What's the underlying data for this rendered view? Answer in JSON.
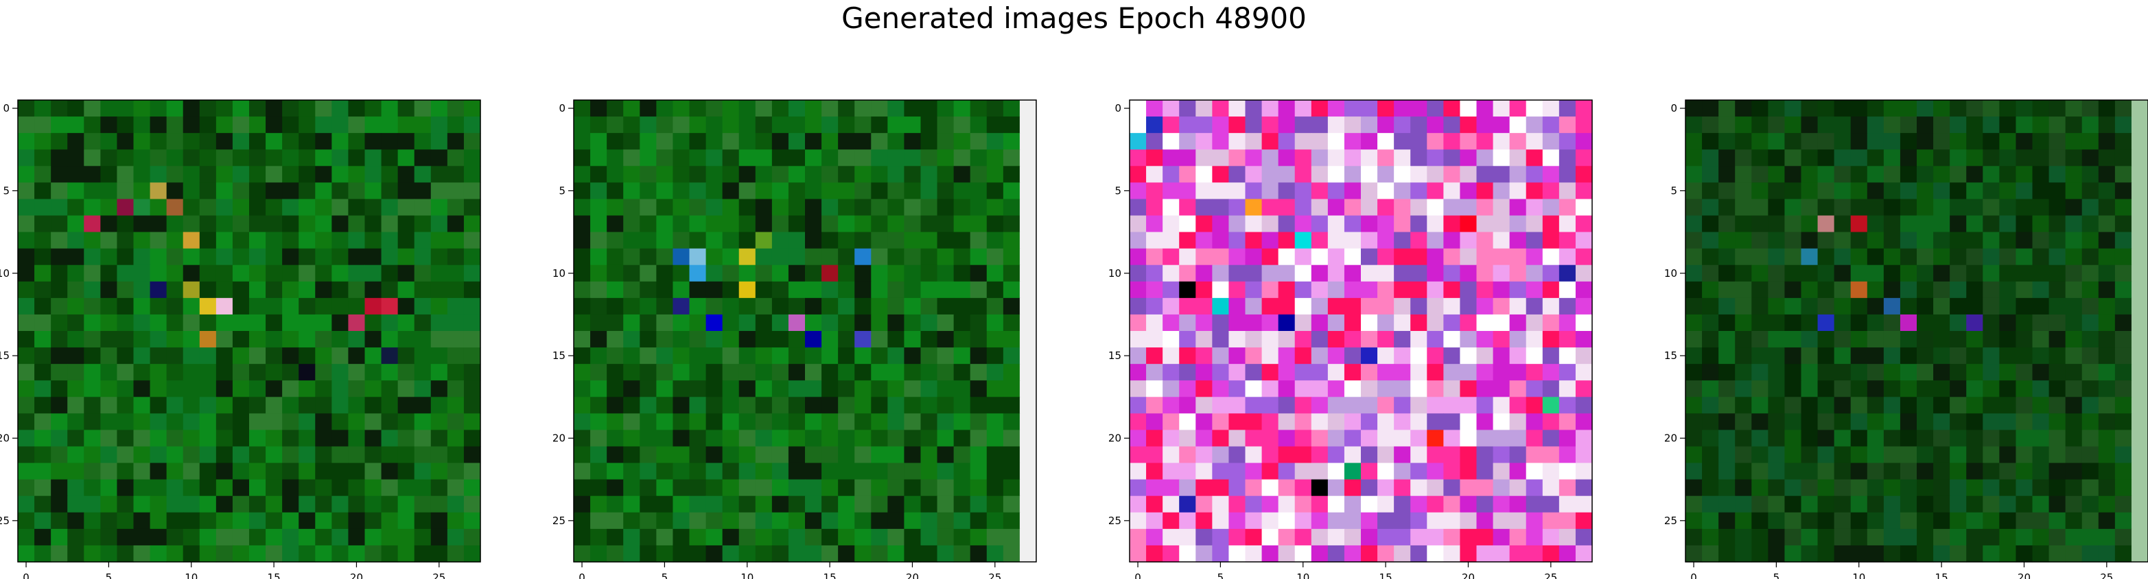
{
  "figure": {
    "title": "Generated images Epoch 48900"
  },
  "chart_data": [
    {
      "type": "heatmap",
      "title": "",
      "xlabel": "",
      "ylabel": "",
      "grid_size": 28,
      "xticks": [
        0,
        5,
        10,
        15,
        20,
        25
      ],
      "yticks": [
        0,
        5,
        10,
        15,
        20,
        25
      ],
      "grid": false,
      "palette": [
        "#0b5a0b",
        "#107a10",
        "#0a6a12",
        "#063e06",
        "#0c8c1c",
        "#1b6b1b",
        "#0a1f0a",
        "#0b4a0b",
        "#2f7d2f",
        "#0d7a2a"
      ],
      "highlights": [
        {
          "row": 5,
          "col": 8,
          "color": "#b8a040"
        },
        {
          "row": 6,
          "col": 6,
          "color": "#8a1040"
        },
        {
          "row": 6,
          "col": 7,
          "color": "#1a8a3a"
        },
        {
          "row": 6,
          "col": 9,
          "color": "#a06030"
        },
        {
          "row": 7,
          "col": 4,
          "color": "#c02050"
        },
        {
          "row": 8,
          "col": 10,
          "color": "#d0a030"
        },
        {
          "row": 11,
          "col": 8,
          "color": "#101060"
        },
        {
          "row": 11,
          "col": 10,
          "color": "#a0a020"
        },
        {
          "row": 12,
          "col": 11,
          "color": "#e0c020"
        },
        {
          "row": 12,
          "col": 12,
          "color": "#f0c0e0"
        },
        {
          "row": 12,
          "col": 21,
          "color": "#c01030"
        },
        {
          "row": 12,
          "col": 22,
          "color": "#d02040"
        },
        {
          "row": 13,
          "col": 20,
          "color": "#c03060"
        },
        {
          "row": 14,
          "col": 11,
          "color": "#c08020"
        },
        {
          "row": 15,
          "col": 22,
          "color": "#101a40"
        },
        {
          "row": 16,
          "col": 17,
          "color": "#0a0a1a"
        }
      ],
      "right_column": ""
    },
    {
      "type": "heatmap",
      "title": "",
      "xlabel": "",
      "ylabel": "",
      "grid_size": 28,
      "xticks": [
        0,
        5,
        10,
        15,
        20,
        25
      ],
      "yticks": [
        0,
        5,
        10,
        15,
        20,
        25
      ],
      "grid": false,
      "palette": [
        "#0b5a0b",
        "#107a10",
        "#0a6a12",
        "#063e06",
        "#0c8c1c",
        "#1b6b1b",
        "#0a1f0a",
        "#0b4a0b",
        "#2f7d2f",
        "#0d7a2a"
      ],
      "highlights": [
        {
          "row": 9,
          "col": 6,
          "color": "#1060b0"
        },
        {
          "row": 9,
          "col": 7,
          "color": "#80c0e0"
        },
        {
          "row": 9,
          "col": 10,
          "color": "#d0c020"
        },
        {
          "row": 9,
          "col": 17,
          "color": "#2080d0"
        },
        {
          "row": 10,
          "col": 7,
          "color": "#30a0e0"
        },
        {
          "row": 11,
          "col": 10,
          "color": "#e0c010"
        },
        {
          "row": 12,
          "col": 6,
          "color": "#202080"
        },
        {
          "row": 13,
          "col": 8,
          "color": "#0000d0"
        },
        {
          "row": 13,
          "col": 13,
          "color": "#c060c0"
        },
        {
          "row": 14,
          "col": 14,
          "color": "#0000a0"
        },
        {
          "row": 14,
          "col": 17,
          "color": "#4040c0"
        },
        {
          "row": 10,
          "col": 15,
          "color": "#a01020"
        },
        {
          "row": 8,
          "col": 11,
          "color": "#60a020"
        }
      ],
      "right_column": "#f0f0f0"
    },
    {
      "type": "heatmap",
      "title": "",
      "xlabel": "",
      "ylabel": "",
      "grid_size": 28,
      "xticks": [
        0,
        5,
        10,
        15,
        20,
        25
      ],
      "yticks": [
        0,
        5,
        10,
        15,
        20,
        25
      ],
      "grid": false,
      "palette": [
        "#f5e6f5",
        "#e040e0",
        "#ff30a0",
        "#ffffff",
        "#c0a0e0",
        "#e0c0e0",
        "#a060e0",
        "#ff80c0",
        "#d020d0",
        "#f0a0f0",
        "#8050c0",
        "#ff1060"
      ],
      "highlights": [
        {
          "row": 1,
          "col": 1,
          "color": "#2030c0"
        },
        {
          "row": 2,
          "col": 0,
          "color": "#20c0e0"
        },
        {
          "row": 6,
          "col": 7,
          "color": "#ffa020"
        },
        {
          "row": 8,
          "col": 10,
          "color": "#00e0e0"
        },
        {
          "row": 11,
          "col": 3,
          "color": "#000000"
        },
        {
          "row": 12,
          "col": 5,
          "color": "#00d0d0"
        },
        {
          "row": 13,
          "col": 9,
          "color": "#0000a0"
        },
        {
          "row": 15,
          "col": 14,
          "color": "#2020c0"
        },
        {
          "row": 18,
          "col": 25,
          "color": "#20d080"
        },
        {
          "row": 20,
          "col": 18,
          "color": "#ff2010"
        },
        {
          "row": 22,
          "col": 13,
          "color": "#00a060"
        },
        {
          "row": 23,
          "col": 11,
          "color": "#000000"
        },
        {
          "row": 24,
          "col": 3,
          "color": "#2020b0"
        },
        {
          "row": 7,
          "col": 20,
          "color": "#ff0020"
        },
        {
          "row": 10,
          "col": 26,
          "color": "#2020a0"
        }
      ],
      "right_column": ""
    },
    {
      "type": "heatmap",
      "title": "",
      "xlabel": "",
      "ylabel": "",
      "grid_size": 28,
      "xticks": [
        0,
        5,
        10,
        15,
        20,
        25
      ],
      "yticks": [
        0,
        5,
        10,
        15,
        20,
        25
      ],
      "grid": false,
      "palette": [
        "#083e08",
        "#0b5a0b",
        "#0a4a12",
        "#042a04",
        "#0c6a1c",
        "#1b4b1b",
        "#0a1f0a",
        "#0b3a0b",
        "#1f5d1f",
        "#0d5a2a"
      ],
      "highlights": [
        {
          "row": 7,
          "col": 8,
          "color": "#c08080"
        },
        {
          "row": 7,
          "col": 10,
          "color": "#c01020"
        },
        {
          "row": 9,
          "col": 7,
          "color": "#2080a0"
        },
        {
          "row": 11,
          "col": 10,
          "color": "#c06020"
        },
        {
          "row": 13,
          "col": 8,
          "color": "#2030c0"
        },
        {
          "row": 13,
          "col": 13,
          "color": "#c020c0"
        },
        {
          "row": 12,
          "col": 12,
          "color": "#2060a0"
        },
        {
          "row": 13,
          "col": 17,
          "color": "#4020a0"
        }
      ],
      "right_column": "#a0c8a0"
    }
  ]
}
